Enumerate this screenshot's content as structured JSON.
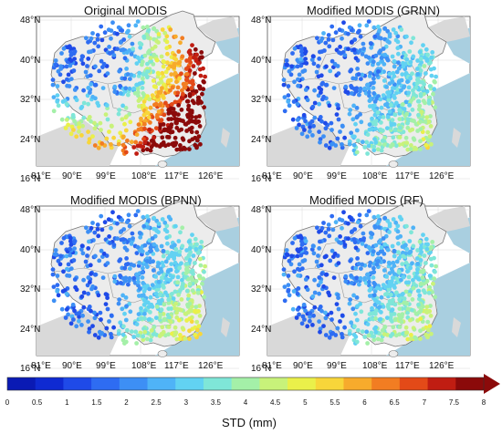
{
  "figure": {
    "panels": [
      {
        "title": "Original MODIS",
        "palette_bias": 2.6
      },
      {
        "title": "Modified MODIS (GRNN)",
        "palette_bias": 1.7
      },
      {
        "title": "Modified MODIS (BPNN)",
        "palette_bias": 2.0
      },
      {
        "title": "Modified MODIS (RF)",
        "palette_bias": 1.8
      }
    ],
    "lat_labels": [
      "48°N",
      "40°N",
      "32°N",
      "24°N",
      "16°N"
    ],
    "lon_labels": [
      "81°E",
      "90°E",
      "99°E",
      "108°E",
      "117°E",
      "126°E"
    ],
    "colorbar": {
      "title": "STD (mm)",
      "ticks": [
        "0",
        "0.5",
        "1",
        "1.5",
        "2",
        "2.5",
        "3",
        "3.5",
        "4",
        "4.5",
        "5",
        "5.5",
        "6",
        "6.5",
        "7",
        "7.5",
        "8"
      ],
      "colors": [
        "#0a1ab4",
        "#0f2ad2",
        "#1f4ae8",
        "#2e6cf2",
        "#3d8ff5",
        "#4fb3f7",
        "#62d2f2",
        "#7fe6d8",
        "#a4f0a8",
        "#c8f27a",
        "#eaf04a",
        "#f8d63a",
        "#f7ab2c",
        "#f27d22",
        "#e34a18",
        "#c01d12",
        "#8b0a0a"
      ]
    }
  }
}
